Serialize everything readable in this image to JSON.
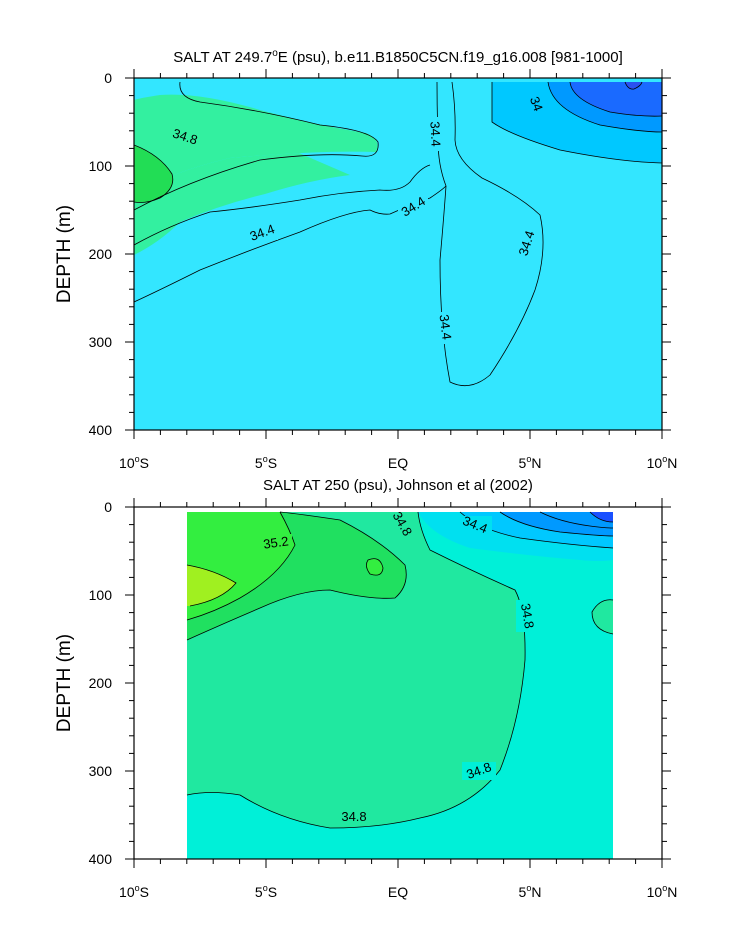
{
  "chart_data": [
    {
      "type": "contour",
      "title": "SALT AT 249.7°E (psu), b.e11.B1850C5CN.f19_g16.008 [981-1000]",
      "title_main": "SALT AT 249.7",
      "title_degree": "o",
      "title_rest": "E (psu), b.e11.B1850C5CN.f19_g16.008 [981-1000]",
      "ylabel": "DEPTH (m)",
      "xlim": [
        -10,
        10
      ],
      "ylim": [
        400,
        0
      ],
      "x_ticks": [
        {
          "value": -10,
          "num": "10",
          "deg": "o",
          "hem": "S"
        },
        {
          "value": -5,
          "num": "5",
          "deg": "o",
          "hem": "S"
        },
        {
          "value": 0,
          "num": "EQ",
          "deg": "",
          "hem": ""
        },
        {
          "value": 5,
          "num": "5",
          "deg": "o",
          "hem": "N"
        },
        {
          "value": 10,
          "num": "10",
          "deg": "o",
          "hem": "N"
        }
      ],
      "y_ticks": [
        0,
        100,
        200,
        300,
        400
      ],
      "contour_labels": [
        "34.8",
        "34.4",
        "34.4",
        "34.4",
        "34.4",
        "34.4",
        "34"
      ],
      "fill_colors": {
        "background": "#33e6ff",
        "fresh": "#00c8ff",
        "fresher": "#0099ff",
        "freshest": "#1a6aff",
        "salty": "#33f0a0",
        "saltier": "#20e86a"
      }
    },
    {
      "type": "contour",
      "title": "SALT AT 250 (psu), Johnson et al (2002)",
      "ylabel": "DEPTH (m)",
      "xlim": [
        -10,
        10
      ],
      "ylim": [
        400,
        0
      ],
      "x_ticks": [
        {
          "value": -10,
          "num": "10",
          "deg": "o",
          "hem": "S"
        },
        {
          "value": -5,
          "num": "5",
          "deg": "o",
          "hem": "S"
        },
        {
          "value": 0,
          "num": "EQ",
          "deg": "",
          "hem": ""
        },
        {
          "value": 5,
          "num": "5",
          "deg": "o",
          "hem": "N"
        },
        {
          "value": 10,
          "num": "10",
          "deg": "o",
          "hem": "N"
        }
      ],
      "y_ticks": [
        0,
        100,
        200,
        300,
        400
      ],
      "contour_labels": [
        "35.2",
        "34.8",
        "34.4",
        "34.8",
        "34.8",
        "34.8"
      ],
      "fill_colors": {
        "background": "#00f0d8",
        "mid": "#20e8a0",
        "salty": "#20e060",
        "saltiest": "#a0f020",
        "fresh": "#00c8ff",
        "freshest": "#1a50ff"
      }
    }
  ]
}
